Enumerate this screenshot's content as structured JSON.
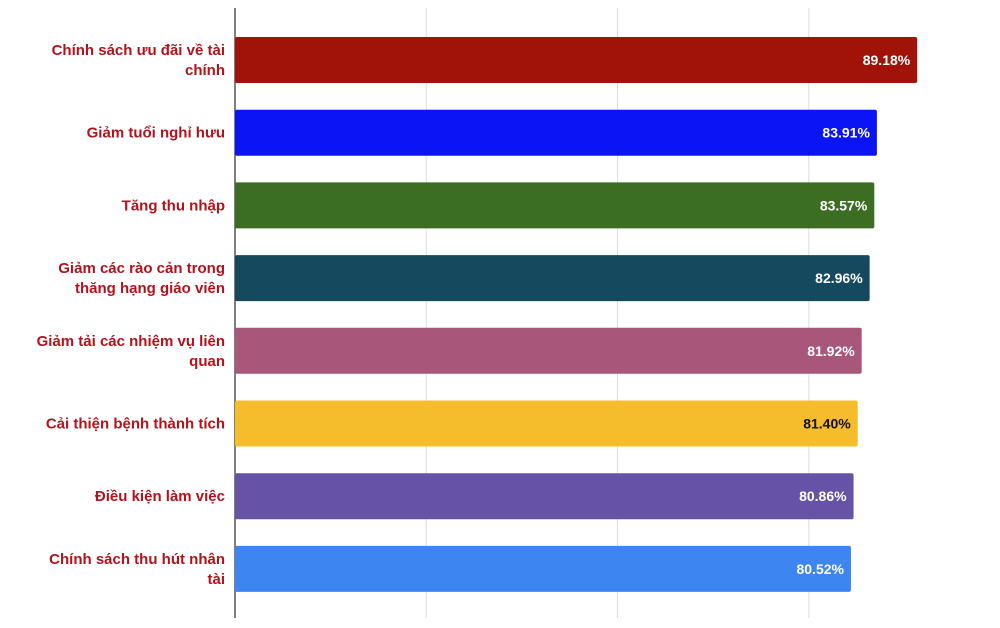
{
  "chart_data": {
    "type": "bar",
    "orientation": "horizontal",
    "title": "",
    "xlabel": "",
    "ylabel": "",
    "categories": [
      "Chính sách ưu đãi về tài chính",
      "Giảm tuổi nghỉ hưu",
      "Tăng thu nhập",
      "Giảm các rào cản trong thăng hạng giáo viên",
      "Giảm tải các nhiệm vụ liên quan",
      "Cải thiện bệnh thành tích",
      "Điều kiện làm việc",
      "Chính sách thu hút nhân tài"
    ],
    "label_lines": [
      [
        "Chính sách ưu đãi về tài",
        "chính"
      ],
      [
        "Giảm tuổi nghỉ hưu"
      ],
      [
        "Tăng thu nhập"
      ],
      [
        "Giảm các rào cản trong",
        "thăng hạng giáo viên"
      ],
      [
        "Giảm tải các nhiệm vụ liên",
        "quan"
      ],
      [
        "Cải thiện bệnh thành tích"
      ],
      [
        "Điều kiện làm việc"
      ],
      [
        "Chính sách thu hút nhân",
        "tài"
      ]
    ],
    "values": [
      89.18,
      83.91,
      83.57,
      82.96,
      81.92,
      81.4,
      80.86,
      80.52
    ],
    "value_labels": [
      "89.18%",
      "83.91%",
      "83.57%",
      "82.96%",
      "81.92%",
      "81.40%",
      "80.86%",
      "80.52%"
    ],
    "bar_colors": [
      "#a11208",
      "#0a14f5",
      "#3b6e22",
      "#154a5e",
      "#a8577a",
      "#f5bd2c",
      "#6653a8",
      "#3d85f0"
    ],
    "value_label_colors": [
      "#ffffff",
      "#ffffff",
      "#ffffff",
      "#ffffff",
      "#ffffff",
      "#111111",
      "#ffffff",
      "#ffffff"
    ],
    "xlim": [
      0,
      100
    ],
    "x_gridlines": [
      0,
      25,
      50,
      75
    ],
    "grid": true,
    "legend": "none",
    "label_color": "#b3121b"
  }
}
